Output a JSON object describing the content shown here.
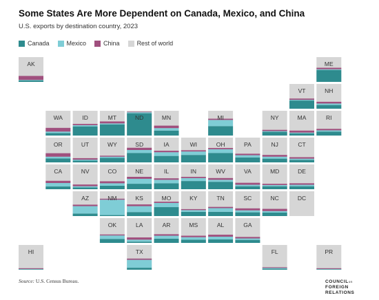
{
  "title": "Some States Are More Dependent on Canada, Mexico, and China",
  "subtitle": "U.S. exports by destination country, 2023",
  "source_label": "Source:",
  "source_text": "U.S. Census Bureau.",
  "logo": {
    "line1": "COUNCIL",
    "line1_suffix": "on",
    "line2": "FOREIGN",
    "line3": "RELATIONS"
  },
  "colors": {
    "Canada": "#2e8b8e",
    "Mexico": "#7fcdd6",
    "China": "#a0507e",
    "Rest of world": "#d6d6d6"
  },
  "chart_data": {
    "type": "tile-grid-map",
    "title": "Some States Are More Dependent on Canada, Mexico, and China",
    "subtitle": "U.S. exports by destination country, 2023",
    "legend": [
      "Canada",
      "Mexico",
      "China",
      "Rest of world"
    ],
    "legend_placement": "top-left",
    "states": [
      {
        "id": "AK",
        "col": 0,
        "row": 0,
        "canada": 0.06,
        "mexico": 0.02,
        "china": 0.16
      },
      {
        "id": "ME",
        "col": 11,
        "row": 0,
        "canada": 0.48,
        "mexico": 0.03,
        "china": 0.06
      },
      {
        "id": "VT",
        "col": 10,
        "row": 1,
        "canada": 0.33,
        "mexico": 0.03,
        "china": 0.05
      },
      {
        "id": "NH",
        "col": 11,
        "row": 1,
        "canada": 0.15,
        "mexico": 0.06,
        "china": 0.07
      },
      {
        "id": "WA",
        "col": 1,
        "row": 2,
        "canada": 0.1,
        "mexico": 0.06,
        "china": 0.15
      },
      {
        "id": "ID",
        "col": 2,
        "row": 2,
        "canada": 0.37,
        "mexico": 0.05,
        "china": 0.05
      },
      {
        "id": "MT",
        "col": 3,
        "row": 2,
        "canada": 0.45,
        "mexico": 0.04,
        "china": 0.08
      },
      {
        "id": "ND",
        "col": 4,
        "row": 2,
        "canada": 0.9,
        "mexico": 0.04,
        "china": 0.02
      },
      {
        "id": "MN",
        "col": 5,
        "row": 2,
        "canada": 0.2,
        "mexico": 0.1,
        "china": 0.1
      },
      {
        "id": "MI",
        "col": 7,
        "row": 2,
        "canada": 0.38,
        "mexico": 0.25,
        "china": 0.05
      },
      {
        "id": "NY",
        "col": 9,
        "row": 2,
        "canada": 0.15,
        "mexico": 0.03,
        "china": 0.05
      },
      {
        "id": "MA",
        "col": 10,
        "row": 2,
        "canada": 0.09,
        "mexico": 0.03,
        "china": 0.08
      },
      {
        "id": "RI",
        "col": 11,
        "row": 2,
        "canada": 0.16,
        "mexico": 0.05,
        "china": 0.06
      },
      {
        "id": "OR",
        "col": 1,
        "row": 3,
        "canada": 0.16,
        "mexico": 0.07,
        "china": 0.14
      },
      {
        "id": "UT",
        "col": 2,
        "row": 3,
        "canada": 0.07,
        "mexico": 0.04,
        "china": 0.06
      },
      {
        "id": "WY",
        "col": 3,
        "row": 3,
        "canada": 0.18,
        "mexico": 0.05,
        "china": 0.04
      },
      {
        "id": "SD",
        "col": 4,
        "row": 3,
        "canada": 0.38,
        "mexico": 0.12,
        "china": 0.09
      },
      {
        "id": "IA",
        "col": 5,
        "row": 3,
        "canada": 0.26,
        "mexico": 0.15,
        "china": 0.06
      },
      {
        "id": "WI",
        "col": 6,
        "row": 3,
        "canada": 0.3,
        "mexico": 0.14,
        "china": 0.05
      },
      {
        "id": "OH",
        "col": 7,
        "row": 3,
        "canada": 0.38,
        "mexico": 0.15,
        "china": 0.05
      },
      {
        "id": "PA",
        "col": 8,
        "row": 3,
        "canada": 0.2,
        "mexico": 0.09,
        "china": 0.06
      },
      {
        "id": "NJ",
        "col": 9,
        "row": 3,
        "canada": 0.15,
        "mexico": 0.08,
        "china": 0.07
      },
      {
        "id": "CT",
        "col": 10,
        "row": 3,
        "canada": 0.1,
        "mexico": 0.05,
        "china": 0.06
      },
      {
        "id": "CA",
        "col": 1,
        "row": 4,
        "canada": 0.11,
        "mexico": 0.14,
        "china": 0.09
      },
      {
        "id": "NV",
        "col": 2,
        "row": 4,
        "canada": 0.07,
        "mexico": 0.05,
        "china": 0.07
      },
      {
        "id": "CO",
        "col": 3,
        "row": 4,
        "canada": 0.14,
        "mexico": 0.1,
        "china": 0.08
      },
      {
        "id": "NE",
        "col": 4,
        "row": 4,
        "canada": 0.22,
        "mexico": 0.2,
        "china": 0.08
      },
      {
        "id": "IL",
        "col": 5,
        "row": 4,
        "canada": 0.24,
        "mexico": 0.14,
        "china": 0.06
      },
      {
        "id": "IN",
        "col": 6,
        "row": 4,
        "canada": 0.33,
        "mexico": 0.12,
        "china": 0.05
      },
      {
        "id": "WV",
        "col": 7,
        "row": 4,
        "canada": 0.3,
        "mexico": 0.08,
        "china": 0.07
      },
      {
        "id": "VA",
        "col": 8,
        "row": 4,
        "canada": 0.12,
        "mexico": 0.06,
        "china": 0.08
      },
      {
        "id": "MD",
        "col": 9,
        "row": 4,
        "canada": 0.12,
        "mexico": 0.05,
        "china": 0.05
      },
      {
        "id": "DE",
        "col": 10,
        "row": 4,
        "canada": 0.12,
        "mexico": 0.06,
        "china": 0.06
      },
      {
        "id": "AZ",
        "col": 2,
        "row": 5,
        "canada": 0.1,
        "mexico": 0.3,
        "china": 0.06
      },
      {
        "id": "NM",
        "col": 3,
        "row": 5,
        "canada": 0.04,
        "mexico": 0.62,
        "china": 0.04
      },
      {
        "id": "KS",
        "col": 4,
        "row": 5,
        "canada": 0.16,
        "mexico": 0.24,
        "china": 0.07
      },
      {
        "id": "MO",
        "col": 5,
        "row": 5,
        "canada": 0.36,
        "mexico": 0.17,
        "china": 0.05
      },
      {
        "id": "KY",
        "col": 6,
        "row": 5,
        "canada": 0.17,
        "mexico": 0.07,
        "china": 0.04
      },
      {
        "id": "TN",
        "col": 7,
        "row": 5,
        "canada": 0.17,
        "mexico": 0.15,
        "china": 0.05
      },
      {
        "id": "SC",
        "col": 8,
        "row": 5,
        "canada": 0.15,
        "mexico": 0.08,
        "china": 0.08
      },
      {
        "id": "NC",
        "col": 9,
        "row": 5,
        "canada": 0.14,
        "mexico": 0.06,
        "china": 0.09
      },
      {
        "id": "DC",
        "col": 10,
        "row": 5,
        "canada": 0.0,
        "mexico": 0.0,
        "china": 0.0
      },
      {
        "id": "OK",
        "col": 3,
        "row": 6,
        "canada": 0.16,
        "mexico": 0.14,
        "china": 0.04
      },
      {
        "id": "LA",
        "col": 4,
        "row": 6,
        "canada": 0.05,
        "mexico": 0.08,
        "china": 0.09
      },
      {
        "id": "AR",
        "col": 5,
        "row": 6,
        "canada": 0.17,
        "mexico": 0.12,
        "china": 0.06
      },
      {
        "id": "MS",
        "col": 6,
        "row": 6,
        "canada": 0.13,
        "mexico": 0.1,
        "china": 0.06
      },
      {
        "id": "AL",
        "col": 7,
        "row": 6,
        "canada": 0.14,
        "mexico": 0.11,
        "china": 0.08
      },
      {
        "id": "GA",
        "col": 8,
        "row": 6,
        "canada": 0.12,
        "mexico": 0.06,
        "china": 0.06
      },
      {
        "id": "HI",
        "col": 0,
        "row": 7,
        "canada": 0.02,
        "mexico": 0.01,
        "china": 0.03
      },
      {
        "id": "TX",
        "col": 4,
        "row": 7,
        "canada": 0.08,
        "mexico": 0.32,
        "china": 0.05
      },
      {
        "id": "FL",
        "col": 9,
        "row": 7,
        "canada": 0.04,
        "mexico": 0.03,
        "china": 0.03
      },
      {
        "id": "PR",
        "col": 11,
        "row": 7,
        "canada": 0.02,
        "mexico": 0.01,
        "china": 0.03
      }
    ]
  }
}
